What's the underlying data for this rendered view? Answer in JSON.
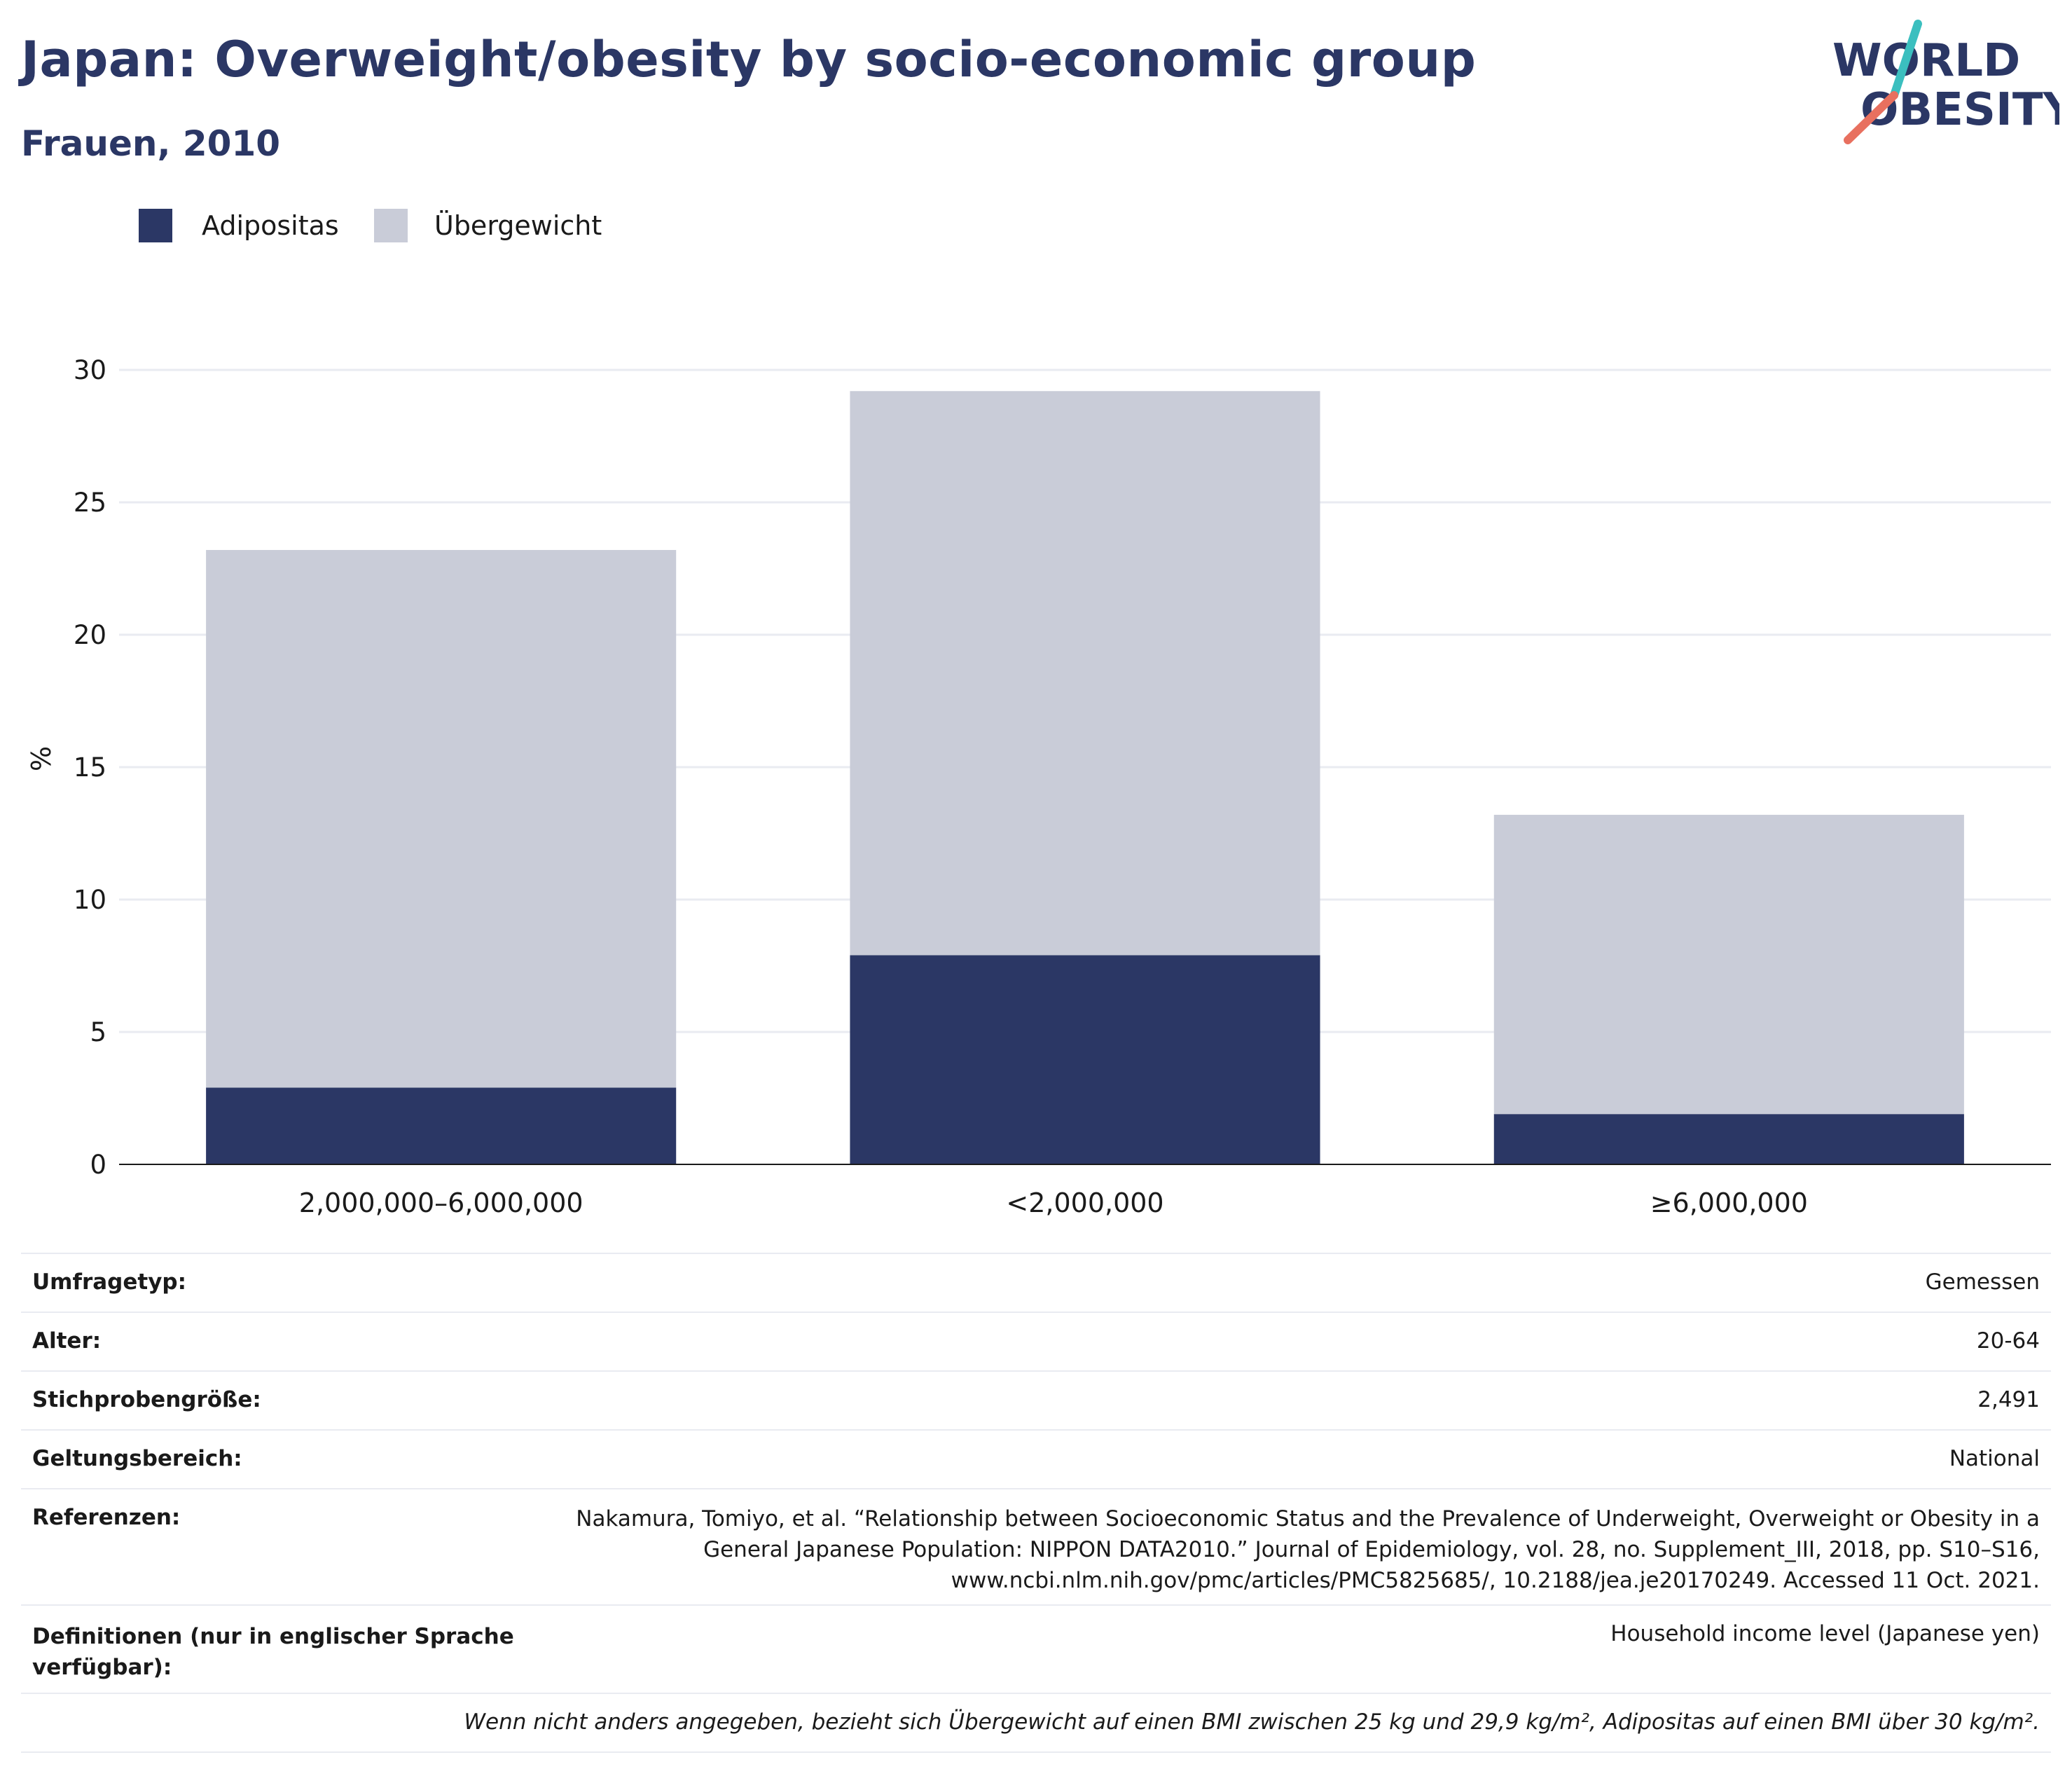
{
  "header": {
    "title": "Japan: Overweight/obesity by socio-economic group",
    "subtitle": "Frauen, 2010"
  },
  "logo": {
    "line1": "WORLD",
    "line2": "OBESITY"
  },
  "colors": {
    "obesity": "#2b3765",
    "overweight": "#c9ccd8",
    "title": "#2b3765",
    "logo_teal": "#3bbfbf",
    "logo_coral": "#e8705f"
  },
  "chart_data": {
    "type": "bar",
    "stacked": true,
    "categories": [
      "2,000,000–6,000,000",
      "<2,000,000",
      "≥6,000,000"
    ],
    "series": [
      {
        "name": "Adipositas",
        "color": "#2b3765",
        "values": [
          2.9,
          7.9,
          1.9
        ]
      },
      {
        "name": "Übergewicht",
        "color": "#c9ccd8",
        "values": [
          20.3,
          21.3,
          11.3
        ]
      }
    ],
    "totals": [
      23.2,
      29.2,
      13.2
    ],
    "ylabel": "%",
    "ylim": [
      0,
      30
    ],
    "yticks": [
      0,
      5,
      10,
      15,
      20,
      25,
      30
    ],
    "grid": true,
    "legend_position": "top-left"
  },
  "info": {
    "survey_type": {
      "label": "Umfragetyp:",
      "value": "Gemessen"
    },
    "age": {
      "label": "Alter:",
      "value": "20-64"
    },
    "sample_size": {
      "label": "Stichprobengröße:",
      "value": "2,491"
    },
    "scope": {
      "label": "Geltungsbereich:",
      "value": "National"
    },
    "references": {
      "label": "Referenzen:",
      "lines": [
        "Nakamura, Tomiyo, et al. “Relationship between Socioeconomic Status and the Prevalence of Underweight, Overweight or Obesity in a",
        "General Japanese Population: NIPPON DATA2010.” Journal of Epidemiology, vol. 28, no. Supplement_III, 2018, pp. S10–S16,",
        "www.ncbi.nlm.nih.gov/pmc/articles/PMC5825685/, 10.2188/jea.je20170249. Accessed 11 Oct. 2021."
      ]
    },
    "definitions": {
      "label_lines": [
        "Definitionen (nur in englischer Sprache",
        "verfügbar):"
      ],
      "value": "Household income level (Japanese yen)"
    },
    "note": "Wenn nicht anders angegeben, bezieht sich Übergewicht auf einen BMI zwischen 25 kg und 29,9 kg/m², Adipositas auf einen BMI über 30 kg/m²."
  }
}
